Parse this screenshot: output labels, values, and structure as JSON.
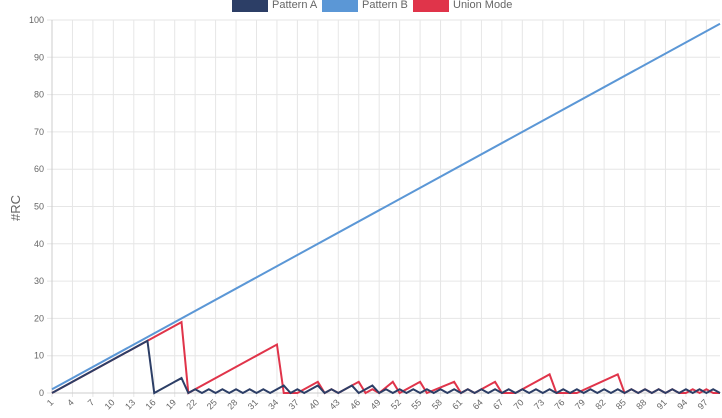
{
  "chart_data": {
    "type": "line",
    "ylabel": "#RC",
    "ylim": [
      0,
      100
    ],
    "yticks": [
      0,
      10,
      20,
      30,
      40,
      50,
      60,
      70,
      80,
      90,
      100
    ],
    "x_start": 1,
    "x_end": 99,
    "x_tick_step": 3,
    "grid": true,
    "legend_position": "top",
    "series": [
      {
        "name": "Pattern A",
        "color": "#2c3e66",
        "points": [
          [
            1,
            0
          ],
          [
            14,
            13
          ],
          [
            15,
            14
          ],
          [
            16,
            0
          ],
          [
            19,
            3
          ],
          [
            20,
            4
          ],
          [
            21,
            0
          ],
          [
            22,
            1
          ],
          [
            23,
            0
          ],
          [
            24,
            1
          ],
          [
            25,
            0
          ],
          [
            26,
            1
          ],
          [
            27,
            0
          ],
          [
            28,
            1
          ],
          [
            29,
            0
          ],
          [
            30,
            1
          ],
          [
            31,
            0
          ],
          [
            32,
            1
          ],
          [
            33,
            0
          ],
          [
            34,
            1
          ],
          [
            35,
            2
          ],
          [
            36,
            0
          ],
          [
            37,
            1
          ],
          [
            38,
            0
          ],
          [
            39,
            1
          ],
          [
            40,
            2
          ],
          [
            41,
            0
          ],
          [
            42,
            1
          ],
          [
            43,
            0
          ],
          [
            44,
            1
          ],
          [
            45,
            2
          ],
          [
            46,
            0
          ],
          [
            47,
            1
          ],
          [
            48,
            2
          ],
          [
            49,
            0
          ],
          [
            50,
            1
          ],
          [
            51,
            0
          ],
          [
            52,
            1
          ],
          [
            53,
            0
          ],
          [
            54,
            1
          ],
          [
            55,
            0
          ],
          [
            56,
            1
          ],
          [
            57,
            0
          ],
          [
            58,
            1
          ],
          [
            59,
            0
          ],
          [
            60,
            1
          ],
          [
            61,
            0
          ],
          [
            62,
            1
          ],
          [
            63,
            0
          ],
          [
            64,
            1
          ],
          [
            65,
            0
          ],
          [
            66,
            1
          ],
          [
            67,
            0
          ],
          [
            68,
            1
          ],
          [
            69,
            0
          ],
          [
            70,
            1
          ],
          [
            71,
            0
          ],
          [
            72,
            1
          ],
          [
            73,
            0
          ],
          [
            74,
            1
          ],
          [
            75,
            0
          ],
          [
            76,
            1
          ],
          [
            77,
            0
          ],
          [
            78,
            1
          ],
          [
            79,
            0
          ],
          [
            80,
            1
          ],
          [
            81,
            0
          ],
          [
            82,
            1
          ],
          [
            83,
            0
          ],
          [
            84,
            1
          ],
          [
            85,
            0
          ],
          [
            86,
            1
          ],
          [
            87,
            0
          ],
          [
            88,
            1
          ],
          [
            89,
            0
          ],
          [
            90,
            1
          ],
          [
            91,
            0
          ],
          [
            92,
            1
          ],
          [
            93,
            0
          ],
          [
            94,
            1
          ],
          [
            95,
            0
          ],
          [
            96,
            1
          ],
          [
            97,
            0
          ],
          [
            98,
            1
          ],
          [
            99,
            0
          ]
        ]
      },
      {
        "name": "Pattern B",
        "color": "#5b97d6",
        "points": [
          [
            1,
            1
          ],
          [
            99,
            99
          ]
        ]
      },
      {
        "name": "Union Mode",
        "color": "#e0344a",
        "points": [
          [
            1,
            0
          ],
          [
            20,
            19
          ],
          [
            21,
            0
          ],
          [
            34,
            13
          ],
          [
            35,
            0
          ],
          [
            37,
            0
          ],
          [
            40,
            3
          ],
          [
            41,
            0
          ],
          [
            42,
            1
          ],
          [
            43,
            0
          ],
          [
            46,
            3
          ],
          [
            47,
            0
          ],
          [
            48,
            1
          ],
          [
            49,
            0
          ],
          [
            51,
            3
          ],
          [
            52,
            0
          ],
          [
            55,
            3
          ],
          [
            56,
            0
          ],
          [
            60,
            3
          ],
          [
            61,
            0
          ],
          [
            62,
            1
          ],
          [
            63,
            0
          ],
          [
            66,
            3
          ],
          [
            67,
            0
          ],
          [
            69,
            0
          ],
          [
            74,
            5
          ],
          [
            75,
            0
          ],
          [
            78,
            0
          ],
          [
            84,
            5
          ],
          [
            85,
            0
          ],
          [
            86,
            1
          ],
          [
            87,
            0
          ],
          [
            88,
            1
          ],
          [
            89,
            0
          ],
          [
            90,
            1
          ],
          [
            91,
            0
          ],
          [
            92,
            1
          ],
          [
            93,
            0
          ],
          [
            94,
            0
          ],
          [
            95,
            1
          ],
          [
            96,
            0
          ],
          [
            97,
            1
          ],
          [
            98,
            0
          ],
          [
            99,
            0
          ]
        ]
      }
    ]
  }
}
